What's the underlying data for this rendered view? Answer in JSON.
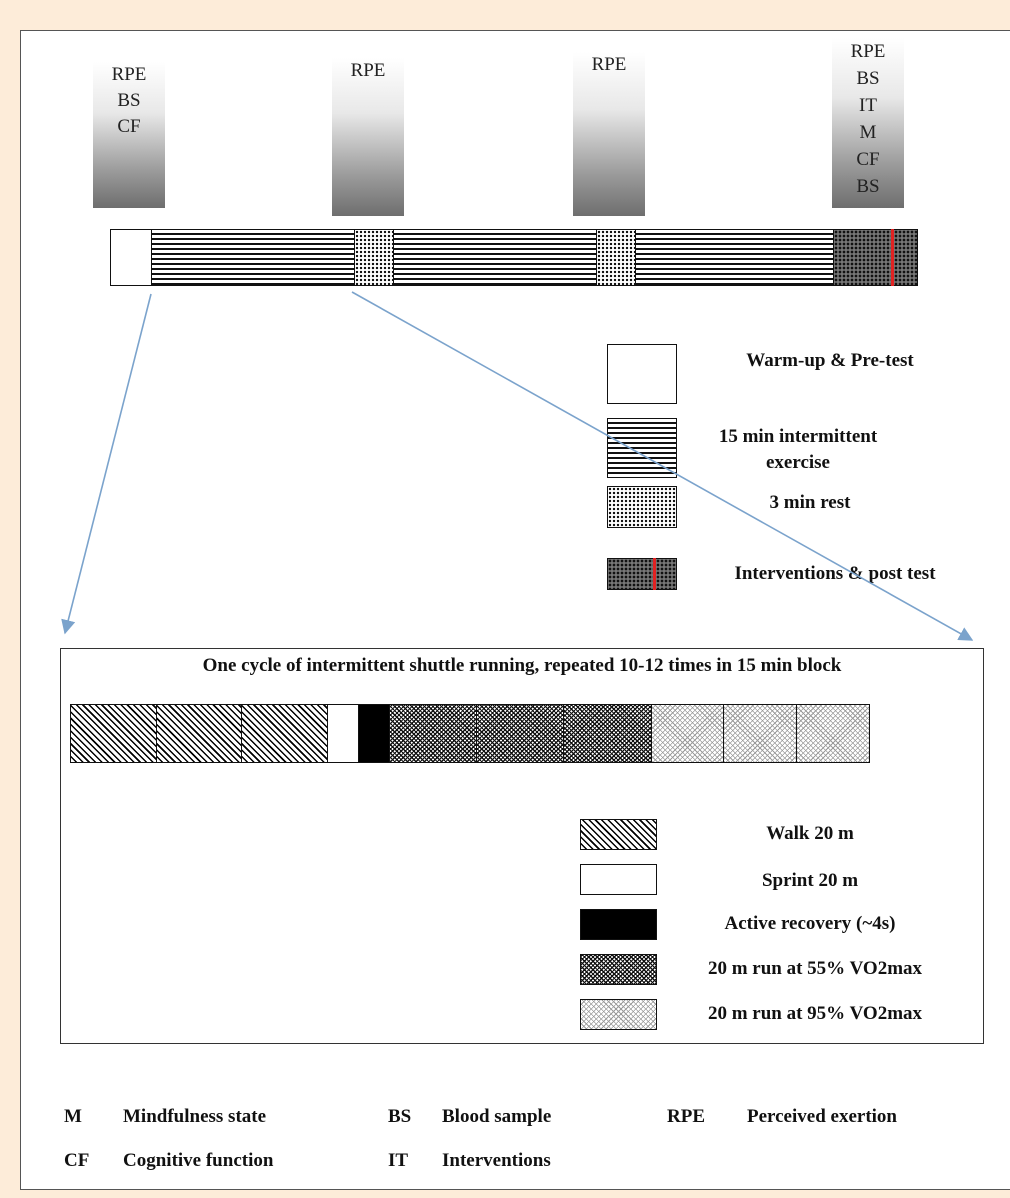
{
  "markers": [
    {
      "lines": [
        "RPE",
        "BS",
        "CF"
      ]
    },
    {
      "lines": [
        "RPE"
      ]
    },
    {
      "lines": [
        "RPE"
      ]
    },
    {
      "lines": [
        "RPE",
        "BS",
        "IT",
        "M",
        "CF",
        "BS"
      ]
    }
  ],
  "timeline_legend": {
    "warmup": "Warm-up & Pre-test",
    "intermittent": "15 min intermittent exercise",
    "rest": "3 min rest",
    "interventions": "Interventions & post test"
  },
  "cycle": {
    "title": "One cycle of intermittent shuttle running, repeated 10-12 times in 15 min block",
    "legend": {
      "walk": "Walk 20 m",
      "sprint": "Sprint 20 m",
      "active": "Active recovery (~4s)",
      "run55": "20 m run at 55% VO2max",
      "run95": "20 m run at 95% VO2max"
    }
  },
  "abbreviations": [
    {
      "abbr": "M",
      "desc": "Mindfulness state"
    },
    {
      "abbr": "BS",
      "desc": "Blood sample"
    },
    {
      "abbr": "RPE",
      "desc": "Perceived exertion"
    },
    {
      "abbr": "CF",
      "desc": "Cognitive function"
    },
    {
      "abbr": "IT",
      "desc": "Interventions"
    }
  ],
  "colors": {
    "accent_line": "#e22222",
    "arrow": "#7ba3cc",
    "background": "#fdecd9"
  }
}
